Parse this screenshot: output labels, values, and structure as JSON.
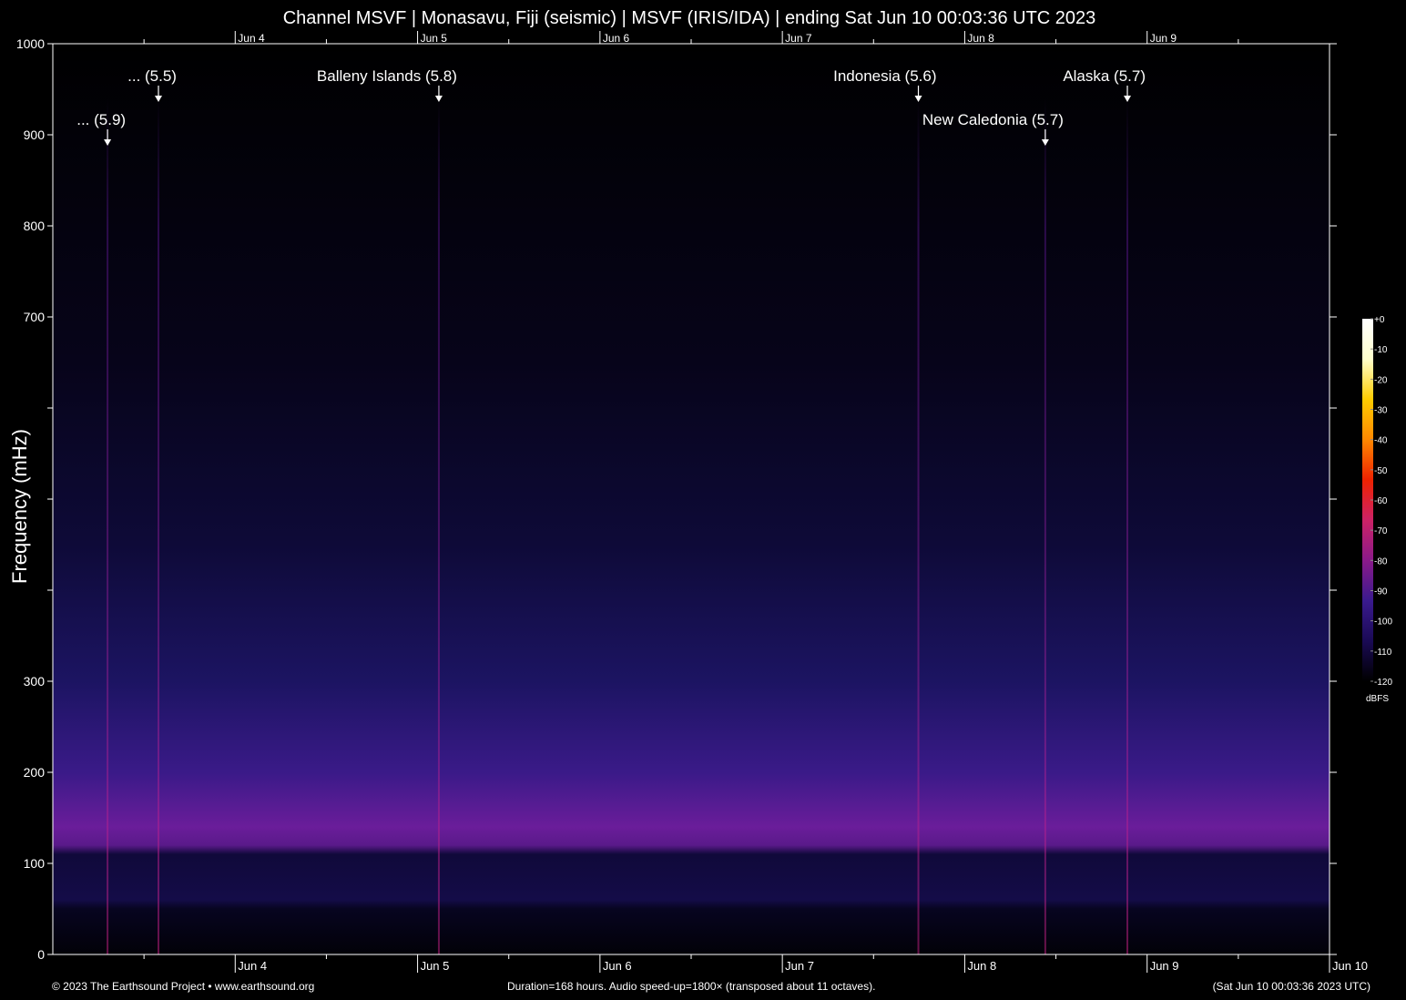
{
  "chart_data": {
    "type": "heatmap",
    "title": "Channel MSVF | Monasavu, Fiji (seismic) | MSVF (IRIS/IDA) | ending Sat Jun 10 00:03:36 UTC 2023",
    "ylabel": "Frequency (mHz)",
    "ylim": [
      0,
      1000
    ],
    "yticks": [
      {
        "value": 0,
        "label": "0"
      },
      {
        "value": 100,
        "label": "100"
      },
      {
        "value": 200,
        "label": "200"
      },
      {
        "value": 300,
        "label": "300"
      },
      {
        "value": 400,
        "label": ""
      },
      {
        "value": 500,
        "label": ""
      },
      {
        "value": 600,
        "label": ""
      },
      {
        "value": 700,
        "label": "700"
      },
      {
        "value": 800,
        "label": "800"
      },
      {
        "value": 900,
        "label": "900"
      },
      {
        "value": 1000,
        "label": "1000"
      }
    ],
    "x_duration_hours": 168,
    "x_end": "Jun 10 00:03:36",
    "xticks": [
      {
        "label": "Jun 4",
        "hour": 24
      },
      {
        "label": "Jun 5",
        "hour": 48
      },
      {
        "label": "Jun 6",
        "hour": 72
      },
      {
        "label": "Jun 7",
        "hour": 96
      },
      {
        "label": "Jun 8",
        "hour": 120
      },
      {
        "label": "Jun 9",
        "hour": 144
      },
      {
        "label": "Jun 10",
        "hour": 168
      }
    ],
    "events": [
      {
        "label": "... (5.9)",
        "hour": 7.2,
        "freq": 890
      },
      {
        "label": "... (5.5)",
        "hour": 13.9,
        "freq": 938
      },
      {
        "label": "Balleny Islands (5.8)",
        "hour": 50.8,
        "freq": 938
      },
      {
        "label": "Indonesia (5.6)",
        "hour": 113.9,
        "freq": 938
      },
      {
        "label": "New Caledonia (5.7)",
        "hour": 130.6,
        "freq": 890
      },
      {
        "label": "Alaska (5.7)",
        "hour": 141.4,
        "freq": 938
      }
    ],
    "colorbar": {
      "unit": "dBFS",
      "range": [
        -120,
        0
      ],
      "ticks": [
        "+0",
        "-10",
        "-20",
        "-30",
        "-40",
        "-50",
        "-60",
        "-70",
        "-80",
        "-90",
        "-100",
        "-110",
        "-120"
      ],
      "colors": [
        "#000000",
        "#1a0a55",
        "#3a1a8e",
        "#8a1a8a",
        "#cc2266",
        "#ee2200",
        "#ff8800",
        "#ffcc00",
        "#ffffcc",
        "#ffffff"
      ]
    }
  },
  "footer": {
    "left": "© 2023 The Earthsound Project • www.earthsound.org",
    "center": "Duration=168 hours. Audio speed-up=1800× (transposed about 11 octaves).",
    "right": "(Sat Jun 10 00:03:36 2023 UTC)"
  }
}
